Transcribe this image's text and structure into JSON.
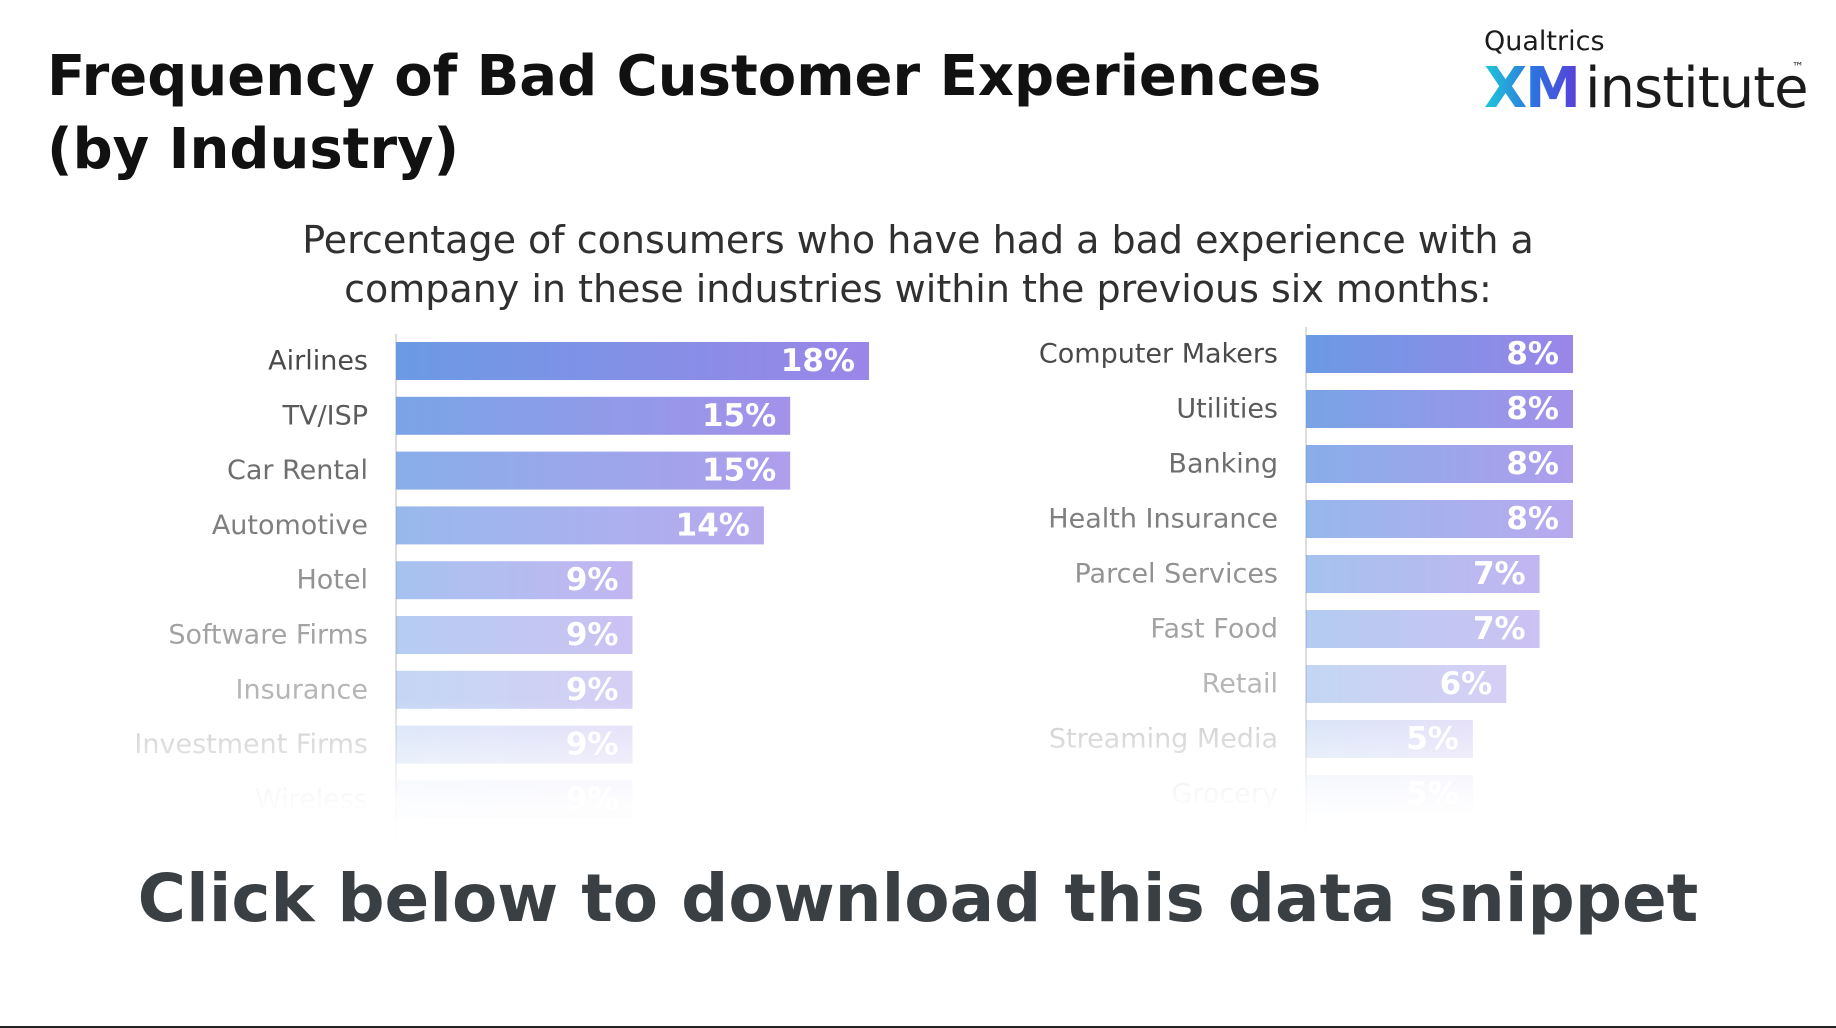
{
  "title": "Frequency of Bad Customer Experiences (by Industry)",
  "brand": {
    "top": "Qualtrics",
    "xm": "XM",
    "institute": "institute",
    "tm": "™"
  },
  "subtitle": "Percentage of consumers who have had a bad experience with a company in these industries within the previous six months:",
  "cta": "Click below to download this data snippet",
  "colors": {
    "bar_start": "#6b9ae4",
    "bar_end": "#9b86e8",
    "label": "#4a4a4a",
    "value": "#ffffff"
  },
  "chart_data": [
    {
      "type": "bar",
      "orientation": "horizontal",
      "title": "",
      "categories": [
        "Airlines",
        "TV/ISP",
        "Car Rental",
        "Automotive",
        "Hotel",
        "Software Firms",
        "Insurance",
        "Investment Firms",
        "Wireless"
      ],
      "values": [
        18,
        15,
        15,
        14,
        9,
        9,
        9,
        9,
        9
      ],
      "labels": [
        "18%",
        "15%",
        "15%",
        "14%",
        "9%",
        "9%",
        "9%",
        "9%",
        "9%"
      ],
      "unit": "%",
      "xlim": [
        0,
        18
      ]
    },
    {
      "type": "bar",
      "orientation": "horizontal",
      "title": "",
      "categories": [
        "Computer Makers",
        "Utilities",
        "Banking",
        "Health Insurance",
        "Parcel Services",
        "Fast Food",
        "Retail",
        "Streaming Media",
        "Grocery"
      ],
      "values": [
        8,
        8,
        8,
        8,
        7,
        7,
        6,
        5,
        5
      ],
      "labels": [
        "8%",
        "8%",
        "8%",
        "8%",
        "7%",
        "7%",
        "6%",
        "5%",
        "5%"
      ],
      "unit": "%",
      "xlim": [
        0,
        8
      ]
    }
  ]
}
